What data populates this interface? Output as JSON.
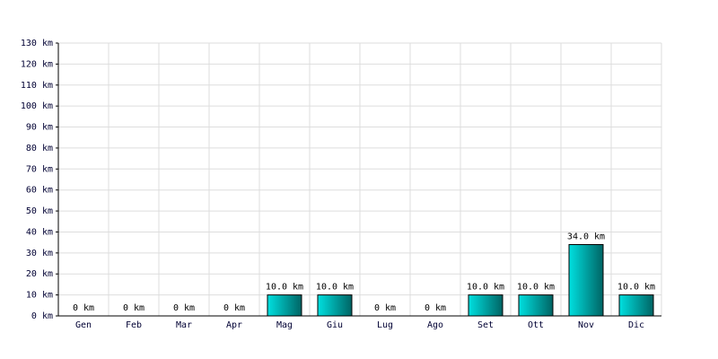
{
  "chart_data": {
    "type": "bar",
    "categories": [
      "Gen",
      "Feb",
      "Mar",
      "Apr",
      "Mag",
      "Giu",
      "Lug",
      "Ago",
      "Set",
      "Ott",
      "Nov",
      "Dic"
    ],
    "values": [
      0,
      0,
      0,
      0,
      10,
      10,
      0,
      0,
      10,
      10,
      34,
      10
    ],
    "value_labels": [
      "0 km",
      "0 km",
      "0 km",
      "0 km",
      "10.0 km",
      "10.0 km",
      "0 km",
      "0 km",
      "10.0 km",
      "10.0 km",
      "34.0 km",
      "10.0 km"
    ],
    "color": "#00e0e0",
    "ylim": [
      0,
      130
    ],
    "yticks": [
      {
        "value": 0,
        "label": "0 km"
      },
      {
        "value": 10,
        "label": "10 km"
      },
      {
        "value": 20,
        "label": "20 km"
      },
      {
        "value": 30,
        "label": "30 km"
      },
      {
        "value": 40,
        "label": "40 km"
      },
      {
        "value": 50,
        "label": "50 km"
      },
      {
        "value": 60,
        "label": "60 km"
      },
      {
        "value": 70,
        "label": "70 km"
      },
      {
        "value": 80,
        "label": "80 km"
      },
      {
        "value": 90,
        "label": "90 km"
      },
      {
        "value": 100,
        "label": "100 km"
      },
      {
        "value": 110,
        "label": "110 km"
      },
      {
        "value": 120,
        "label": "120 km"
      },
      {
        "value": 130,
        "label": "130 km"
      }
    ],
    "grid": true
  }
}
